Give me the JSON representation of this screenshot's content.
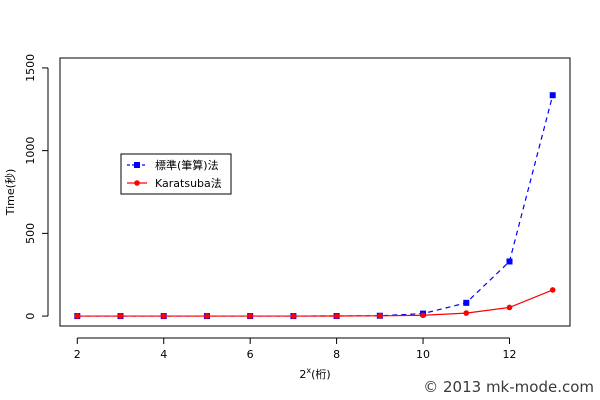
{
  "chart_data": {
    "type": "line",
    "x": [
      2,
      3,
      4,
      5,
      6,
      7,
      8,
      9,
      10,
      11,
      12,
      13
    ],
    "xlabel_base": "2",
    "xlabel_sup": "x",
    "xlabel_suffix": "(桁)",
    "ylabel": "Time(秒)",
    "xlim": [
      1.6,
      13.4
    ],
    "ylim": [
      -60,
      1560
    ],
    "xticks": [
      2,
      4,
      6,
      8,
      10,
      12
    ],
    "yticks": [
      0,
      500,
      1000,
      1500
    ],
    "grid": false,
    "legend_position": "upper-left",
    "series": [
      {
        "name": "標準(筆算)法",
        "color": "#0000ff",
        "marker": "square",
        "line_style": "dashed",
        "values": [
          0,
          0,
          0,
          0,
          0,
          0,
          0.5,
          2,
          15,
          80,
          330,
          1335
        ]
      },
      {
        "name": "Karatsuba法",
        "color": "#ff0000",
        "marker": "circle",
        "line_style": "solid",
        "values": [
          0,
          0,
          0,
          0,
          0,
          0,
          0.5,
          1.5,
          5,
          18,
          52,
          158
        ]
      }
    ]
  },
  "watermark": "© 2013 mk-mode.com"
}
